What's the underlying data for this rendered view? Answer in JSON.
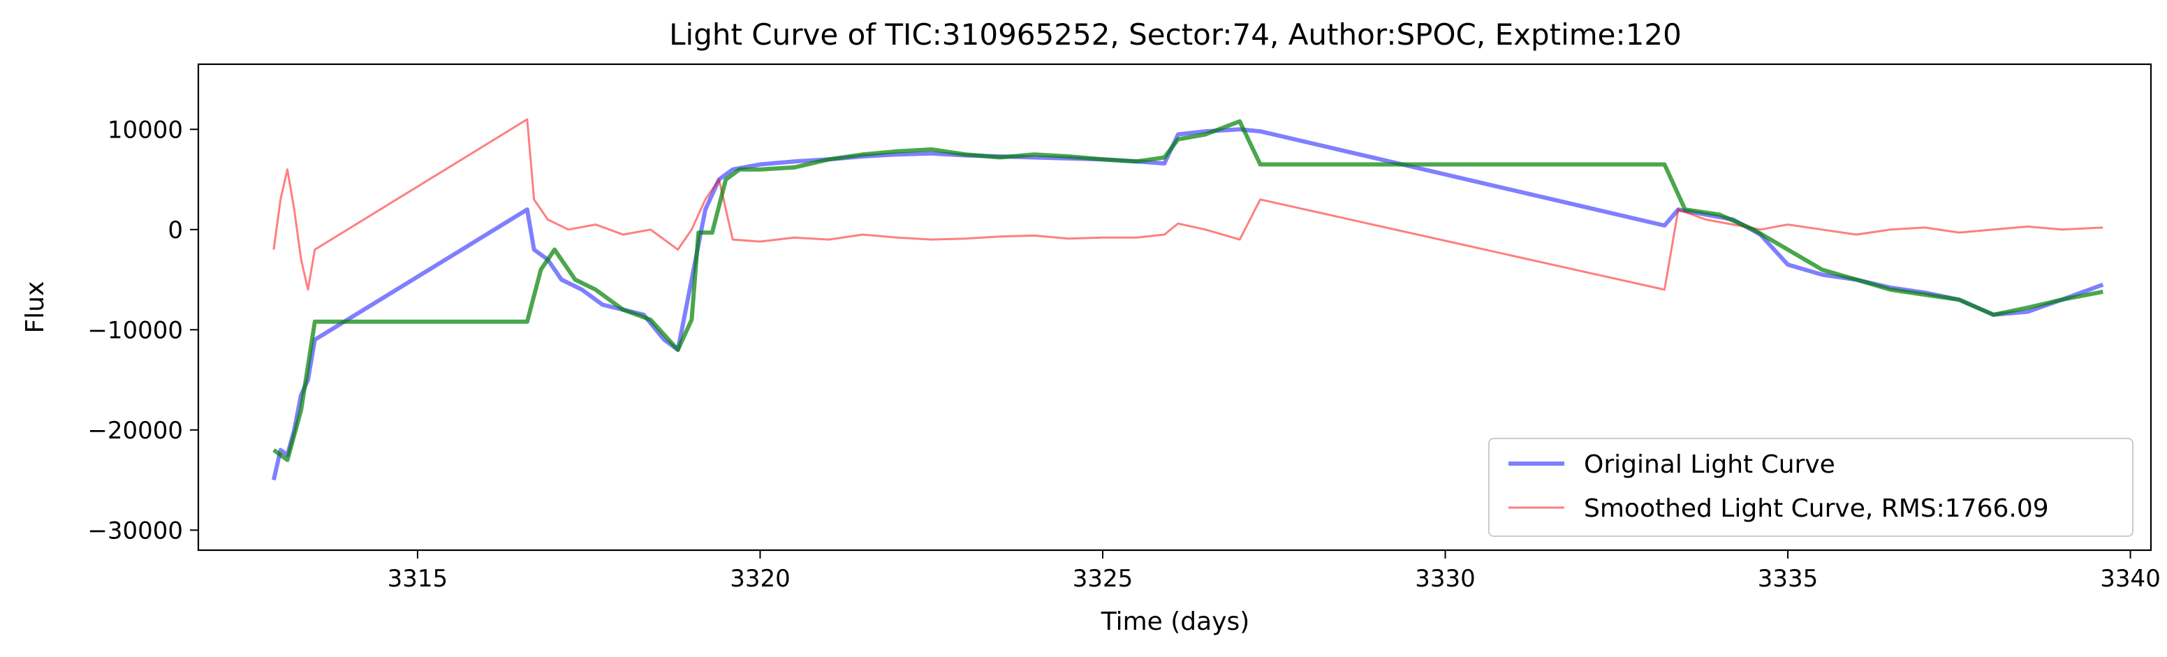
{
  "chart_data": {
    "type": "line",
    "title": "Light Curve of TIC:310965252, Sector:74, Author:SPOC, Exptime:120",
    "xlabel": "Time (days)",
    "ylabel": "Flux",
    "xlim": [
      3311.8,
      3340.3
    ],
    "ylim": [
      -32000,
      16500
    ],
    "xticks": [
      3315,
      3320,
      3325,
      3330,
      3335,
      3340
    ],
    "yticks": [
      -30000,
      -20000,
      -10000,
      0,
      10000
    ],
    "xtick_labels": [
      "3315",
      "3320",
      "3325",
      "3330",
      "3335",
      "3340"
    ],
    "ytick_labels": [
      "−30000",
      "−20000",
      "−10000",
      "0",
      "10000"
    ],
    "grid": false,
    "legend_position": "lower-right",
    "series": [
      {
        "name": "Original Light Curve",
        "color": "#0000ff",
        "alpha": 0.5,
        "width": 6,
        "x": [
          3312.9,
          3313.0,
          3313.1,
          3313.2,
          3313.3,
          3313.4,
          3313.5,
          3316.6,
          3316.7,
          3316.9,
          3317.1,
          3317.4,
          3317.7,
          3318.0,
          3318.3,
          3318.6,
          3318.8,
          3319.0,
          3319.2,
          3319.4,
          3319.6,
          3320.0,
          3320.5,
          3321.0,
          3321.5,
          3322.0,
          3322.5,
          3323.0,
          3323.5,
          3324.0,
          3324.5,
          3325.0,
          3325.5,
          3325.9,
          3326.1,
          3326.5,
          3327.0,
          3327.3,
          3333.2,
          3333.4,
          3333.8,
          3334.2,
          3334.6,
          3335.0,
          3335.5,
          3336.0,
          3336.5,
          3337.0,
          3337.5,
          3338.0,
          3338.5,
          3339.0,
          3339.6
        ],
        "y": [
          -25000,
          -22000,
          -22500,
          -20000,
          -16500,
          -15000,
          -11000,
          2000,
          -2000,
          -3000,
          -5000,
          -6000,
          -7500,
          -8000,
          -8500,
          -11000,
          -12000,
          -5000,
          2000,
          5000,
          6000,
          6500,
          6800,
          7000,
          7300,
          7500,
          7600,
          7400,
          7300,
          7200,
          7100,
          7000,
          6800,
          6600,
          9500,
          9800,
          10000,
          9800,
          400,
          2000,
          1500,
          1000,
          -500,
          -3500,
          -4500,
          -5000,
          -5800,
          -6300,
          -7000,
          -8500,
          -8200,
          -7000,
          -5500
        ]
      },
      {
        "name": "Smoothed Light Curve, RMS:1766.09",
        "color": "#ff0000",
        "alpha": 0.5,
        "width": 3,
        "x": [
          3312.9,
          3313.0,
          3313.1,
          3313.2,
          3313.3,
          3313.4,
          3313.5,
          3316.6,
          3316.7,
          3316.9,
          3317.2,
          3317.6,
          3318.0,
          3318.4,
          3318.8,
          3319.0,
          3319.2,
          3319.4,
          3319.6,
          3320.0,
          3320.5,
          3321.0,
          3321.5,
          3322.0,
          3322.5,
          3323.0,
          3323.5,
          3324.0,
          3324.5,
          3325.0,
          3325.5,
          3325.9,
          3326.1,
          3326.5,
          3327.0,
          3327.3,
          3333.2,
          3333.4,
          3333.8,
          3334.2,
          3334.6,
          3335.0,
          3335.5,
          3336.0,
          3336.5,
          3337.0,
          3337.5,
          3338.0,
          3338.5,
          3339.0,
          3339.6
        ],
        "y": [
          -2000,
          3000,
          6000,
          2000,
          -3000,
          -6000,
          -2000,
          11000,
          3000,
          1000,
          0,
          500,
          -500,
          0,
          -2000,
          0,
          3000,
          5000,
          -1000,
          -1200,
          -800,
          -1000,
          -500,
          -800,
          -1000,
          -900,
          -700,
          -600,
          -900,
          -800,
          -800,
          -500,
          600,
          0,
          -1000,
          3000,
          -6000,
          2000,
          1000,
          500,
          0,
          500,
          0,
          -500,
          0,
          200,
          -300,
          0,
          300,
          0,
          200
        ]
      },
      {
        "name": "",
        "color": "#008000",
        "alpha": 0.7,
        "width": 6,
        "x": [
          3312.9,
          3313.1,
          3313.3,
          3313.5,
          3316.6,
          3316.8,
          3317.0,
          3317.3,
          3317.6,
          3318.0,
          3318.4,
          3318.8,
          3319.0,
          3319.1,
          3319.3,
          3319.5,
          3319.7,
          3320.0,
          3320.5,
          3321.0,
          3321.5,
          3322.0,
          3322.5,
          3323.0,
          3323.5,
          3324.0,
          3324.5,
          3325.0,
          3325.5,
          3325.9,
          3326.1,
          3326.5,
          3327.0,
          3327.3,
          3333.2,
          3333.5,
          3334.0,
          3334.5,
          3335.0,
          3335.5,
          3336.0,
          3336.5,
          3337.0,
          3337.5,
          3338.0,
          3338.5,
          3339.0,
          3339.6
        ],
        "y": [
          -22000,
          -23000,
          -18000,
          -9200,
          -9200,
          -4000,
          -2000,
          -5000,
          -6000,
          -8000,
          -9000,
          -12000,
          -9000,
          -300,
          -300,
          5000,
          6000,
          6000,
          6200,
          7000,
          7500,
          7800,
          8000,
          7500,
          7200,
          7500,
          7300,
          7000,
          6800,
          7200,
          9000,
          9500,
          10800,
          6500,
          6500,
          2000,
          1500,
          0,
          -2000,
          -4000,
          -5000,
          -6000,
          -6500,
          -7000,
          -8500,
          -7800,
          -7000,
          -6200
        ]
      }
    ]
  }
}
